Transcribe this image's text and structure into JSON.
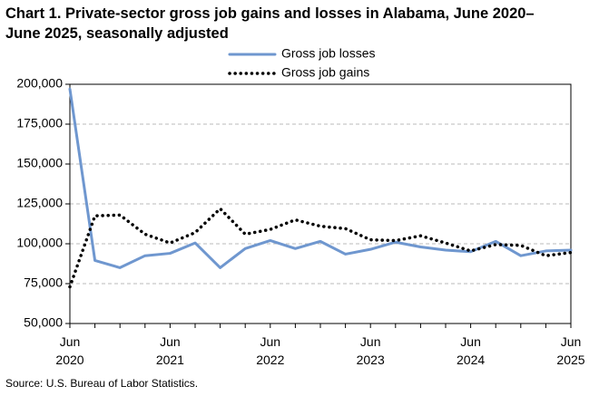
{
  "chart_data": {
    "type": "line",
    "title": "Chart 1. Private-sector gross job gains and losses in Alabama, June 2020–June 2025, seasonally adjusted",
    "source": "Source: U.S. Bureau of Labor Statistics.",
    "categories": [
      "Jun 2020",
      null,
      null,
      null,
      "Jun 2021",
      null,
      null,
      null,
      "Jun 2022",
      null,
      null,
      null,
      "Jun 2023",
      null,
      null,
      null,
      "Jun 2024",
      null,
      null,
      null,
      "Jun 2025"
    ],
    "series": [
      {
        "name": "Gross job losses",
        "color": "#6f97cf",
        "style": "solid",
        "values": [
          197000,
          89500,
          85000,
          92500,
          94000,
          100500,
          85000,
          97000,
          102000,
          97000,
          101500,
          93500,
          96500,
          101000,
          98000,
          96000,
          95000,
          101500,
          92500,
          95500,
          96000
        ]
      },
      {
        "name": "Gross job gains",
        "color": "#000000",
        "style": "dotted",
        "values": [
          73000,
          117500,
          118000,
          106000,
          100500,
          107000,
          122000,
          106000,
          109000,
          115000,
          111000,
          109500,
          102500,
          102000,
          105000,
          100500,
          95500,
          99500,
          99000,
          92500,
          94500
        ]
      }
    ],
    "ylim": [
      50000,
      200000
    ],
    "yticks": [
      {
        "value": 50000,
        "label": "50,000"
      },
      {
        "value": 75000,
        "label": "75,000"
      },
      {
        "value": 100000,
        "label": "100,000"
      },
      {
        "value": 125000,
        "label": "125,000"
      },
      {
        "value": 150000,
        "label": "150,000"
      },
      {
        "value": 175000,
        "label": "175,000"
      },
      {
        "value": 200000,
        "label": "200,000"
      }
    ],
    "grid": true
  }
}
